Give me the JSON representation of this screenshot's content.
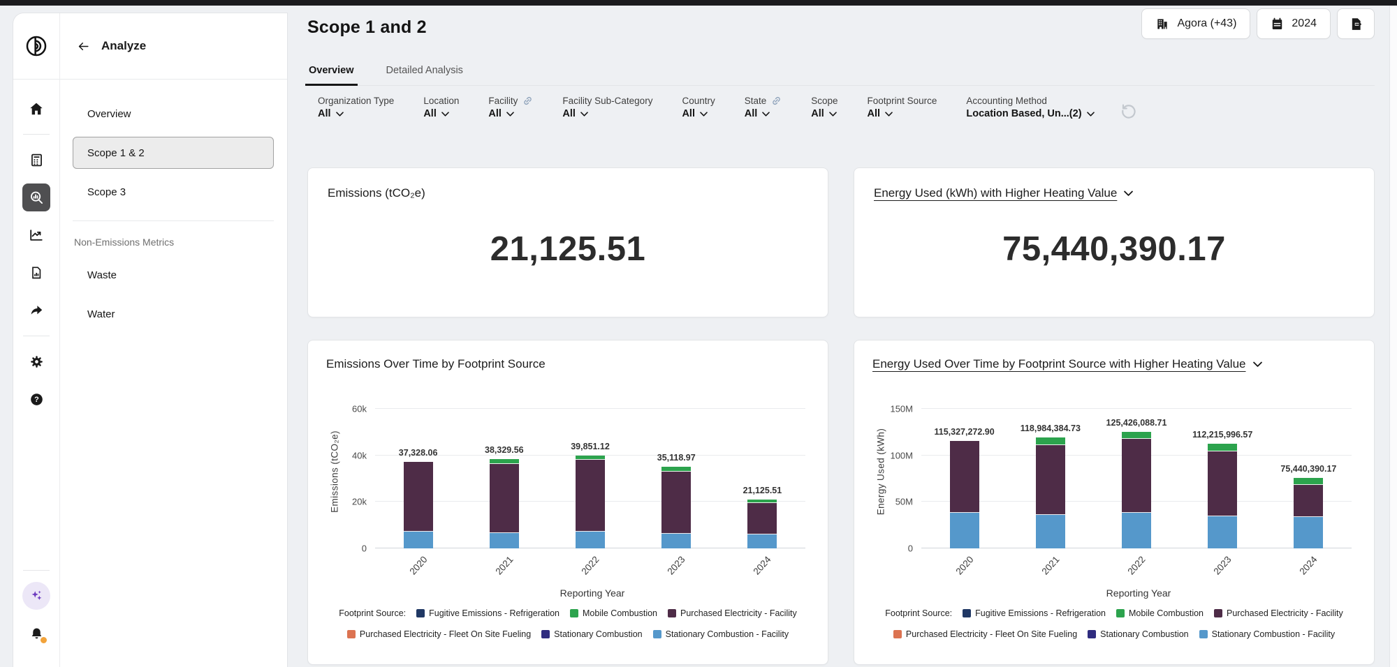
{
  "colors": {
    "active_rail_tile": "#4f4f51",
    "selected_menu_bg": "#ececec",
    "notification_dot": "#f2a33a",
    "ai_sparkle": "#6d3bbf",
    "bar_blue": "#5598CB",
    "bar_purple": "#4E2C47",
    "bar_green": "#2CA34D"
  },
  "sidebar": {
    "title": "Analyze",
    "rail_icons": [
      "home",
      "calculator",
      "analyze-search",
      "trends",
      "report",
      "share",
      "settings",
      "help",
      "ai-sparkles",
      "notifications"
    ],
    "items": [
      {
        "label": "Overview",
        "selected": false
      },
      {
        "label": "Scope 1 & 2",
        "selected": true
      },
      {
        "label": "Scope 3",
        "selected": false
      }
    ],
    "section_label": "Non-Emissions Metrics",
    "section_items": [
      {
        "label": "Waste"
      },
      {
        "label": "Water"
      }
    ]
  },
  "header": {
    "title": "Scope 1 and 2",
    "org_button": "Agora (+43)",
    "year_button": "2024"
  },
  "tabs": [
    {
      "label": "Overview",
      "active": true
    },
    {
      "label": "Detailed Analysis",
      "active": false
    }
  ],
  "filters": [
    {
      "label": "Organization Type",
      "value": "All",
      "link_icon": false
    },
    {
      "label": "Location",
      "value": "All",
      "link_icon": false
    },
    {
      "label": "Facility",
      "value": "All",
      "link_icon": true
    },
    {
      "label": "Facility Sub-Category",
      "value": "All",
      "link_icon": false
    },
    {
      "label": "Country",
      "value": "All",
      "link_icon": false
    },
    {
      "label": "State",
      "value": "All",
      "link_icon": true
    },
    {
      "label": "Scope",
      "value": "All",
      "link_icon": false
    },
    {
      "label": "Footprint Source",
      "value": "All",
      "link_icon": false
    },
    {
      "label": "Accounting Method",
      "value": "Location Based, Un...(2)",
      "link_icon": false
    }
  ],
  "kpis": [
    {
      "title": "Emissions (tCO₂e)",
      "value": "21,125.51",
      "dropdown": false
    },
    {
      "title": "Energy Used (kWh) with Higher Heating Value",
      "value": "75,440,390.17",
      "dropdown": true
    }
  ],
  "legend": {
    "prefix": "Footprint Source:",
    "items": [
      {
        "label": "Fugitive Emissions - Refrigeration",
        "color": "#203864"
      },
      {
        "label": "Mobile Combustion",
        "color": "#2CA34D"
      },
      {
        "label": "Purchased Electricity - Facility",
        "color": "#4E2C47"
      },
      {
        "label": "Purchased Electricity - Fleet On Site Fueling",
        "color": "#DC7351"
      },
      {
        "label": "Stationary Combustion",
        "color": "#2F2C7F"
      },
      {
        "label": "Stationary Combustion - Facility",
        "color": "#5598CB"
      }
    ]
  },
  "chart_data": [
    {
      "type": "bar",
      "stacked": true,
      "title": "Emissions Over Time by Footprint Source",
      "xlabel": "Reporting Year",
      "ylabel": "Emissions (tCO₂e)",
      "categories": [
        "2020",
        "2021",
        "2022",
        "2023",
        "2024"
      ],
      "series": [
        {
          "name": "Fugitive Emissions - Refrigeration",
          "color": "#203864",
          "values": [
            0,
            0,
            0,
            0,
            0
          ]
        },
        {
          "name": "Purchased Electricity - Fleet On Site Fueling",
          "color": "#DC7351",
          "values": [
            0,
            0,
            0,
            0,
            0
          ]
        },
        {
          "name": "Stationary Combustion",
          "color": "#2F2C7F",
          "values": [
            0,
            0,
            0,
            0,
            0
          ]
        },
        {
          "name": "Stationary Combustion - Facility",
          "color": "#5598CB",
          "values": [
            7200,
            6500,
            7300,
            6200,
            6000
          ]
        },
        {
          "name": "Purchased Electricity - Facility",
          "color": "#4E2C47",
          "values": [
            30128.06,
            29929.56,
            30751.12,
            26918.97,
            13425.51
          ]
        },
        {
          "name": "Mobile Combustion",
          "color": "#2CA34D",
          "values": [
            0,
            1900,
            1800,
            2000,
            1700
          ]
        }
      ],
      "totals": [
        37328.06,
        38329.56,
        39851.12,
        35118.97,
        21125.51
      ],
      "total_labels": [
        "37,328.06",
        "38,329.56",
        "39,851.12",
        "35,118.97",
        "21,125.51"
      ],
      "yticks": [
        {
          "value": 0,
          "label": "0"
        },
        {
          "value": 20000,
          "label": "20k"
        },
        {
          "value": 40000,
          "label": "40k"
        },
        {
          "value": 60000,
          "label": "60k"
        }
      ],
      "ylim": [
        0,
        60000
      ],
      "scale_max": 66000,
      "grid": true,
      "legend_position": "bottom",
      "dropdown": false
    },
    {
      "type": "bar",
      "stacked": true,
      "title": "Energy Used Over Time by Footprint Source with Higher Heating Value",
      "xlabel": "Reporting Year",
      "ylabel": "Energy Used (kWh)",
      "categories": [
        "2020",
        "2021",
        "2022",
        "2023",
        "2024"
      ],
      "series": [
        {
          "name": "Fugitive Emissions - Refrigeration",
          "color": "#203864",
          "values": [
            0,
            0,
            0,
            0,
            0
          ]
        },
        {
          "name": "Purchased Electricity - Fleet On Site Fueling",
          "color": "#DC7351",
          "values": [
            0,
            0,
            0,
            0,
            0
          ]
        },
        {
          "name": "Stationary Combustion",
          "color": "#2F2C7F",
          "values": [
            0,
            0,
            0,
            0,
            0
          ]
        },
        {
          "name": "Stationary Combustion - Facility",
          "color": "#5598CB",
          "values": [
            38000000,
            36300000,
            38500000,
            34500000,
            33800000
          ]
        },
        {
          "name": "Purchased Electricity - Facility",
          "color": "#4E2C47",
          "values": [
            77327272.9,
            74684384.73,
            79426088.71,
            69515996.57,
            34640390.17
          ]
        },
        {
          "name": "Mobile Combustion",
          "color": "#2CA34D",
          "values": [
            0,
            8000000,
            7500000,
            8200000,
            7000000
          ]
        }
      ],
      "totals": [
        115327272.9,
        118984384.73,
        125426088.71,
        112215996.57,
        75440390.17
      ],
      "total_labels": [
        "115,327,272.90",
        "118,984,384.73",
        "125,426,088.71",
        "112,215,996.57",
        "75,440,390.17"
      ],
      "yticks": [
        {
          "value": 0,
          "label": "0"
        },
        {
          "value": 50000000,
          "label": "50M"
        },
        {
          "value": 100000000,
          "label": "100M"
        },
        {
          "value": 150000000,
          "label": "150M"
        }
      ],
      "ylim": [
        0,
        150000000
      ],
      "scale_max": 165000000,
      "grid": true,
      "legend_position": "bottom",
      "dropdown": true
    }
  ]
}
